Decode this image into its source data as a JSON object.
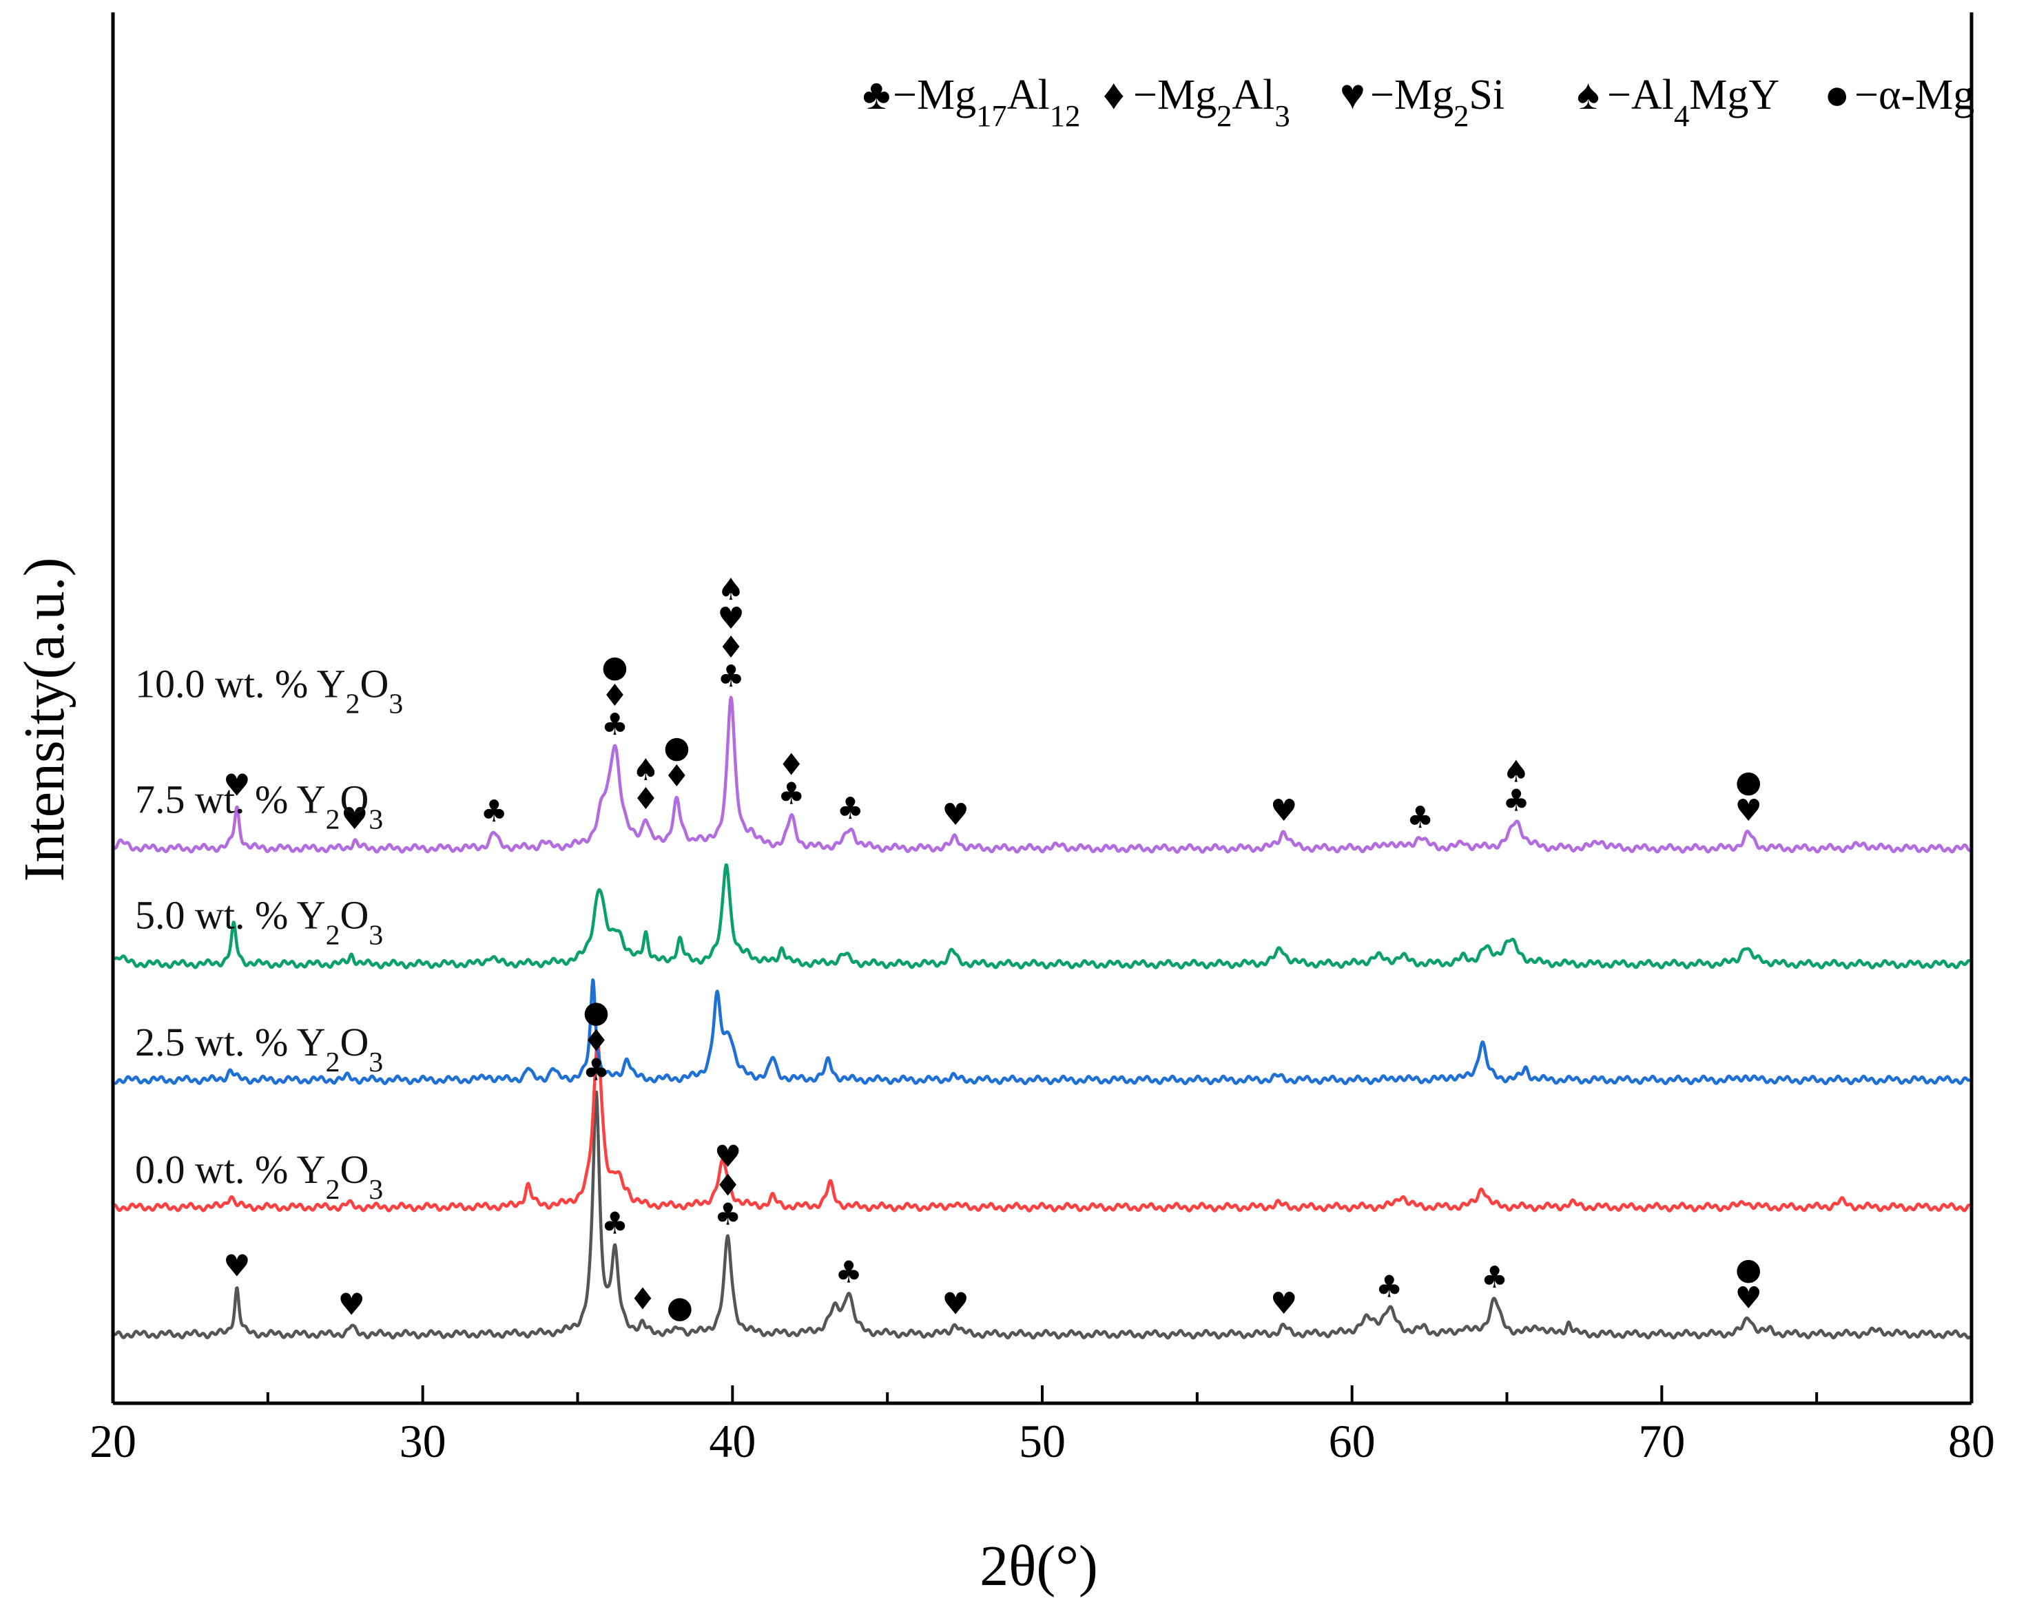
{
  "chart_data": {
    "type": "line",
    "title": "",
    "xlabel": "2θ(°)",
    "ylabel": "Intensity(a.u.)",
    "xlim": [
      20,
      80
    ],
    "xticks": [
      "20",
      "30",
      "40",
      "50",
      "60",
      "70",
      "80"
    ],
    "grid": false,
    "legend": {
      "placement": "top-right",
      "entries": [
        {
          "symbol": "♣",
          "text": "−Mg17Al12",
          "parts": [
            [
              "−Mg",
              ""
            ],
            [
              "17",
              "sub"
            ],
            [
              "Al",
              ""
            ],
            [
              "12",
              "sub"
            ]
          ]
        },
        {
          "symbol": "♦",
          "text": "−Mg2Al3",
          "parts": [
            [
              "−Mg",
              ""
            ],
            [
              "2",
              "sub"
            ],
            [
              "Al",
              ""
            ],
            [
              "3",
              "sub"
            ]
          ]
        },
        {
          "symbol": "♥",
          "text": "−Mg2Si",
          "parts": [
            [
              "−Mg",
              ""
            ],
            [
              "2",
              "sub"
            ],
            [
              "Si",
              ""
            ]
          ]
        },
        {
          "symbol": "♠",
          "text": "−Al4MgY",
          "parts": [
            [
              "−Al",
              ""
            ],
            [
              "4",
              "sub"
            ],
            [
              "MgY",
              ""
            ]
          ]
        },
        {
          "symbol": "●",
          "text": "−α-Mg",
          "parts": [
            [
              "−α-Mg",
              ""
            ]
          ]
        }
      ]
    },
    "series": [
      {
        "name": "0.0 wt. % Y2O3",
        "label_parts": [
          [
            "0.0 wt. % Y",
            ""
          ],
          [
            "2",
            "sub"
          ],
          [
            "O",
            ""
          ],
          [
            "3",
            "sub"
          ]
        ],
        "color": "#555555",
        "baseline": 0,
        "peaks": [
          [
            24.0,
            1.2,
            0.09
          ],
          [
            27.7,
            0.22,
            0.1
          ],
          [
            35.6,
            6.2,
            0.13
          ],
          [
            36.2,
            2.0,
            0.14
          ],
          [
            37.1,
            0.2,
            0.1
          ],
          [
            38.3,
            0.15,
            0.1
          ],
          [
            39.85,
            2.5,
            0.15
          ],
          [
            43.3,
            0.6,
            0.25
          ],
          [
            43.75,
            1.0,
            0.16
          ],
          [
            47.2,
            0.28,
            0.13
          ],
          [
            57.8,
            0.2,
            0.14
          ],
          [
            60.5,
            0.35,
            0.3
          ],
          [
            61.2,
            0.6,
            0.25
          ],
          [
            62.3,
            0.15,
            0.15
          ],
          [
            63.6,
            0.15,
            0.15
          ],
          [
            64.6,
            0.9,
            0.2
          ],
          [
            66.0,
            0.2,
            0.2
          ],
          [
            67.0,
            0.3,
            0.1
          ],
          [
            72.8,
            0.45,
            0.17
          ],
          [
            73.5,
            0.1,
            0.15
          ],
          [
            77.0,
            0.1,
            0.3
          ]
        ]
      },
      {
        "name": "2.5 wt. % Y2O3",
        "label_parts": [
          [
            "2.5 wt. % Y",
            ""
          ],
          [
            "2",
            "sub"
          ],
          [
            "O",
            ""
          ],
          [
            "3",
            "sub"
          ]
        ],
        "color": "#ff4040",
        "baseline": 3.3,
        "peaks": [
          [
            23.8,
            0.3,
            0.12
          ],
          [
            27.6,
            0.1,
            0.1
          ],
          [
            33.4,
            0.55,
            0.12
          ],
          [
            35.65,
            4.25,
            0.17
          ],
          [
            36.3,
            0.6,
            0.2
          ],
          [
            36.6,
            0.2,
            0.1
          ],
          [
            39.7,
            1.15,
            0.2
          ],
          [
            41.3,
            0.25,
            0.12
          ],
          [
            43.15,
            0.6,
            0.14
          ],
          [
            47.1,
            0.1,
            0.12
          ],
          [
            57.6,
            0.1,
            0.15
          ],
          [
            61.6,
            0.3,
            0.18
          ],
          [
            64.2,
            0.5,
            0.17
          ],
          [
            67.1,
            0.1,
            0.2
          ],
          [
            72.7,
            0.15,
            0.15
          ],
          [
            75.8,
            0.15,
            0.2
          ]
        ]
      },
      {
        "name": "5.0 wt. % Y2O3",
        "label_parts": [
          [
            "5.0 wt. % Y",
            ""
          ],
          [
            "2",
            "sub"
          ],
          [
            "O",
            ""
          ],
          [
            "3",
            "sub"
          ]
        ],
        "color": "#1e6fd6",
        "baseline": 6.6,
        "peaks": [
          [
            23.8,
            0.25,
            0.12
          ],
          [
            27.6,
            0.1,
            0.1
          ],
          [
            32.1,
            0.1,
            0.15
          ],
          [
            33.4,
            0.3,
            0.1
          ],
          [
            34.2,
            0.3,
            0.1
          ],
          [
            35.5,
            2.6,
            0.1
          ],
          [
            36.6,
            0.55,
            0.13
          ],
          [
            39.5,
            2.0,
            0.15
          ],
          [
            39.9,
            1.0,
            0.2
          ],
          [
            41.3,
            0.55,
            0.12
          ],
          [
            43.1,
            0.5,
            0.13
          ],
          [
            47.1,
            0.1,
            0.12
          ],
          [
            57.6,
            0.1,
            0.15
          ],
          [
            61.5,
            0.08,
            0.15
          ],
          [
            63.2,
            0.08,
            0.15
          ],
          [
            64.2,
            1.0,
            0.15
          ],
          [
            65.6,
            0.3,
            0.12
          ],
          [
            72.7,
            0.1,
            0.15
          ]
        ]
      },
      {
        "name": "7.5 wt. % Y2O3",
        "label_parts": [
          [
            "7.5 wt. % Y",
            ""
          ],
          [
            "2",
            "sub"
          ],
          [
            "O",
            ""
          ],
          [
            "3",
            "sub"
          ]
        ],
        "color": "#0aa06e",
        "baseline": 9.6,
        "peaks": [
          [
            20.2,
            0.2,
            0.2
          ],
          [
            23.9,
            1.0,
            0.1
          ],
          [
            27.7,
            0.25,
            0.1
          ],
          [
            32.2,
            0.2,
            0.15
          ],
          [
            35.7,
            1.9,
            0.22
          ],
          [
            36.3,
            0.7,
            0.22
          ],
          [
            37.2,
            0.75,
            0.1
          ],
          [
            38.3,
            0.6,
            0.12
          ],
          [
            39.8,
            2.65,
            0.15
          ],
          [
            40.5,
            0.2,
            0.2
          ],
          [
            41.6,
            0.4,
            0.12
          ],
          [
            43.6,
            0.25,
            0.2
          ],
          [
            47.1,
            0.35,
            0.14
          ],
          [
            57.7,
            0.4,
            0.2
          ],
          [
            60.8,
            0.2,
            0.25
          ],
          [
            61.6,
            0.2,
            0.2
          ],
          [
            63.6,
            0.15,
            0.15
          ],
          [
            64.3,
            0.35,
            0.2
          ],
          [
            65.1,
            0.6,
            0.3
          ],
          [
            72.7,
            0.45,
            0.18
          ],
          [
            73.2,
            0.1,
            0.15
          ]
        ]
      },
      {
        "name": "10.0 wt. % Y2O3",
        "label_parts": [
          [
            "10.0 wt. % Y",
            ""
          ],
          [
            "2",
            "sub"
          ],
          [
            "O",
            ""
          ],
          [
            "3",
            "sub"
          ]
        ],
        "color": "#b36be0",
        "baseline": 12.6,
        "peaks": [
          [
            20.3,
            0.15,
            0.2
          ],
          [
            24.0,
            1.05,
            0.1
          ],
          [
            27.8,
            0.2,
            0.1
          ],
          [
            32.3,
            0.4,
            0.14
          ],
          [
            33.9,
            0.15,
            0.12
          ],
          [
            35.8,
            0.7,
            0.2
          ],
          [
            36.2,
            2.55,
            0.22
          ],
          [
            37.2,
            0.65,
            0.13
          ],
          [
            38.2,
            1.2,
            0.15
          ],
          [
            38.9,
            0.2,
            0.12
          ],
          [
            39.95,
            3.9,
            0.15
          ],
          [
            40.6,
            0.3,
            0.2
          ],
          [
            41.9,
            0.8,
            0.15
          ],
          [
            43.8,
            0.5,
            0.2
          ],
          [
            47.2,
            0.3,
            0.14
          ],
          [
            50.6,
            0.08,
            0.2
          ],
          [
            57.8,
            0.45,
            0.17
          ],
          [
            61.2,
            0.15,
            0.2
          ],
          [
            62.2,
            0.3,
            0.2
          ],
          [
            63.6,
            0.15,
            0.15
          ],
          [
            65.3,
            0.7,
            0.25
          ],
          [
            68.0,
            0.2,
            0.2
          ],
          [
            72.8,
            0.4,
            0.17
          ],
          [
            76.5,
            0.1,
            0.3
          ]
        ]
      }
    ],
    "phase_markers": [
      {
        "series": "0.0 wt. % Y2O3",
        "peaks": [
          {
            "x": 24.0,
            "symbols": "♥"
          },
          {
            "x": 27.7,
            "symbols": "♥"
          },
          {
            "x": 35.6,
            "symbols": "●♦♣"
          },
          {
            "x": 36.2,
            "symbols": "♣"
          },
          {
            "x": 37.1,
            "symbols": "♦"
          },
          {
            "x": 38.3,
            "symbols": "●"
          },
          {
            "x": 39.85,
            "symbols": "♥♦♣"
          },
          {
            "x": 43.75,
            "symbols": "♣"
          },
          {
            "x": 47.2,
            "symbols": "♥"
          },
          {
            "x": 57.8,
            "symbols": "♥"
          },
          {
            "x": 61.2,
            "symbols": "♣"
          },
          {
            "x": 64.6,
            "symbols": "♣"
          },
          {
            "x": 72.8,
            "symbols": "●♥"
          }
        ]
      },
      {
        "series": "10.0 wt. % Y2O3",
        "peaks": [
          {
            "x": 24.0,
            "symbols": "♥"
          },
          {
            "x": 27.8,
            "symbols": "♥"
          },
          {
            "x": 32.3,
            "symbols": "♣"
          },
          {
            "x": 36.2,
            "symbols": "●♦♣"
          },
          {
            "x": 37.2,
            "symbols": "♠♦"
          },
          {
            "x": 38.2,
            "symbols": "●♦"
          },
          {
            "x": 39.95,
            "symbols": "♠♥♦♣"
          },
          {
            "x": 41.9,
            "symbols": "♦♣"
          },
          {
            "x": 43.8,
            "symbols": "♣"
          },
          {
            "x": 47.2,
            "symbols": "♥"
          },
          {
            "x": 57.8,
            "symbols": "♥"
          },
          {
            "x": 62.2,
            "symbols": "♣"
          },
          {
            "x": 65.3,
            "symbols": "♠♣"
          },
          {
            "x": 72.8,
            "symbols": "●♥"
          }
        ]
      }
    ]
  }
}
